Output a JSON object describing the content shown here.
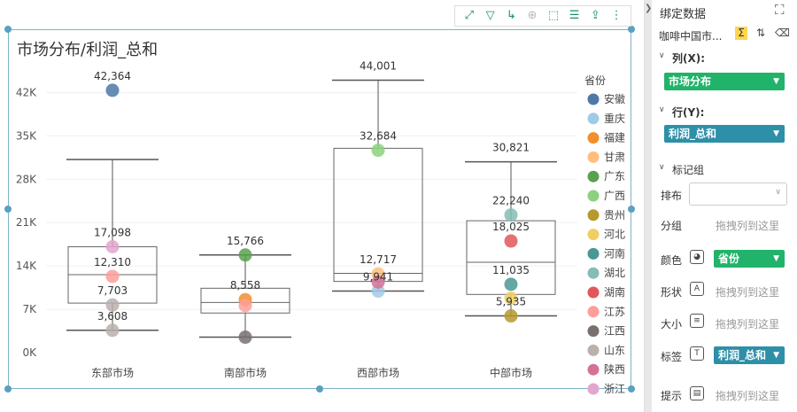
{
  "toolbar": {
    "icons": [
      "expand-icon",
      "filter-icon",
      "drill-icon",
      "zoom-icon",
      "select-icon",
      "list-icon",
      "export-icon",
      "more-icon"
    ]
  },
  "chart_data": {
    "type": "boxplot",
    "title": "市场分布/利润_总和",
    "xlabel": "",
    "ylabel": "",
    "ylim": [
      0,
      45500
    ],
    "yticks": [
      0,
      7000,
      14000,
      21000,
      28000,
      35000,
      42000
    ],
    "ytick_labels": [
      "0K",
      "7K",
      "14K",
      "21K",
      "28K",
      "35K",
      "42K"
    ],
    "categories": [
      "东部市场",
      "南部市场",
      "西部市场",
      "中部市场"
    ],
    "boxes": [
      {
        "category": "东部市场",
        "min": 3608,
        "q1": 8000,
        "median": 12600,
        "q3": 17100,
        "max": 31200
      },
      {
        "category": "南部市场",
        "min": 2500,
        "q1": 6400,
        "median": 8100,
        "q3": 10400,
        "max": 15766
      },
      {
        "category": "西部市场",
        "min": 9941,
        "q1": 11500,
        "median": 12800,
        "q3": 33000,
        "max": 44001
      },
      {
        "category": "中部市场",
        "min": 5935,
        "q1": 9400,
        "median": 14600,
        "q3": 21300,
        "max": 30821
      }
    ],
    "legend_title": "省份",
    "legend_position": "right",
    "series": [
      {
        "name": "安徽",
        "color": "#4e79a7",
        "points": [
          {
            "x": "东部市场",
            "y": 42364
          }
        ]
      },
      {
        "name": "重庆",
        "color": "#a0cbe8",
        "points": [
          {
            "x": "西部市场",
            "y": 9941
          }
        ]
      },
      {
        "name": "福建",
        "color": "#f28e2b",
        "points": [
          {
            "x": "南部市场",
            "y": 8558
          }
        ]
      },
      {
        "name": "甘肃",
        "color": "#ffbe7d",
        "points": [
          {
            "x": "西部市场",
            "y": 12717
          }
        ]
      },
      {
        "name": "广东",
        "color": "#59a14f",
        "points": [
          {
            "x": "南部市场",
            "y": 15766
          }
        ]
      },
      {
        "name": "广西",
        "color": "#8cd17d",
        "points": [
          {
            "x": "西部市场",
            "y": 32684
          }
        ]
      },
      {
        "name": "贵州",
        "color": "#b6992d",
        "points": [
          {
            "x": "中部市场",
            "y": 5935
          }
        ]
      },
      {
        "name": "河北",
        "color": "#f1ce63",
        "points": [
          {
            "x": "中部市场",
            "y": 8800
          }
        ]
      },
      {
        "name": "河南",
        "color": "#499894",
        "points": [
          {
            "x": "中部市场",
            "y": 11035
          }
        ]
      },
      {
        "name": "湖北",
        "color": "#86bcb6",
        "points": [
          {
            "x": "中部市场",
            "y": 22240
          }
        ]
      },
      {
        "name": "湖南",
        "color": "#e15759",
        "points": [
          {
            "x": "中部市场",
            "y": 18025
          }
        ]
      },
      {
        "name": "江苏",
        "color": "#ff9d9a",
        "points": [
          {
            "x": "东部市场",
            "y": 12310
          },
          {
            "x": "南部市场",
            "y": 7600
          }
        ]
      },
      {
        "name": "江西",
        "color": "#79706e",
        "points": [
          {
            "x": "南部市场",
            "y": 2500
          }
        ]
      },
      {
        "name": "山东",
        "color": "#bab0ac",
        "points": [
          {
            "x": "东部市场",
            "y": 7703
          },
          {
            "x": "东部市场",
            "y": 3608
          }
        ]
      },
      {
        "name": "陕西",
        "color": "#d37295",
        "points": [
          {
            "x": "西部市场",
            "y": 11400
          }
        ]
      },
      {
        "name": "浙江",
        "color": "#e3a6cd",
        "points": [
          {
            "x": "东部市场",
            "y": 17098
          }
        ]
      }
    ],
    "data_labels": [
      {
        "x": "东部市场",
        "y": 42364,
        "text": "42,364"
      },
      {
        "x": "东部市场",
        "y": 17098,
        "text": "17,098"
      },
      {
        "x": "东部市场",
        "y": 12310,
        "text": "12,310"
      },
      {
        "x": "东部市场",
        "y": 7703,
        "text": "7,703"
      },
      {
        "x": "东部市场",
        "y": 3608,
        "text": "3,608"
      },
      {
        "x": "南部市场",
        "y": 15766,
        "text": "15,766"
      },
      {
        "x": "南部市场",
        "y": 8558,
        "text": "8,558"
      },
      {
        "x": "西部市场",
        "y": 44001,
        "text": "44,001"
      },
      {
        "x": "西部市场",
        "y": 32684,
        "text": "32,684"
      },
      {
        "x": "西部市场",
        "y": 12717,
        "text": "12,717"
      },
      {
        "x": "西部市场",
        "y": 9941,
        "text": "9,941"
      },
      {
        "x": "中部市场",
        "y": 30821,
        "text": "30,821"
      },
      {
        "x": "中部市场",
        "y": 22240,
        "text": "22,240"
      },
      {
        "x": "中部市场",
        "y": 18025,
        "text": "18,025"
      },
      {
        "x": "中部市场",
        "y": 11035,
        "text": "11,035"
      },
      {
        "x": "中部市场",
        "y": 5935,
        "text": "5,935"
      }
    ]
  },
  "panel": {
    "header": "绑定数据",
    "dataset_name": "咖啡中国市...",
    "columns_label": "列(X):",
    "columns_field": "市场分布",
    "rows_label": "行(Y):",
    "rows_field": "利润_总和",
    "marks_label": "标记组",
    "layout_label": "排布",
    "group_label": "分组",
    "group_hint": "拖拽列到这里",
    "color_label": "颜色",
    "color_field": "省份",
    "shape_label": "形状",
    "shape_hint": "拖拽列到这里",
    "size_label": "大小",
    "size_hint": "拖拽列到这里",
    "label_label": "标签",
    "label_field": "利润_总和",
    "tooltip_label": "提示",
    "tooltip_hint": "拖拽列到这里"
  },
  "colors": {
    "accent_green": "#22b36b",
    "accent_blue": "#2e8fa8",
    "frame": "#7fb3c9"
  }
}
